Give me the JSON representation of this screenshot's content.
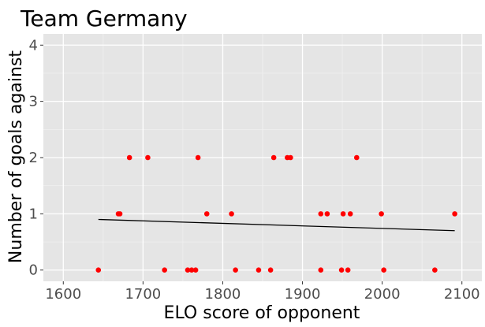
{
  "chart_data": {
    "type": "scatter",
    "title": "Team Germany",
    "xlabel": "ELO score of opponent",
    "ylabel": "Number of goals against",
    "xlim": [
      1575,
      2125
    ],
    "ylim": [
      -0.2,
      4.2
    ],
    "x_ticks": [
      1600,
      1700,
      1800,
      1900,
      2000,
      2100
    ],
    "y_ticks": [
      0,
      1,
      2,
      3,
      4
    ],
    "grid": true,
    "colors": {
      "panel": "#e5e5e5",
      "grid_major": "#ffffff",
      "points": "#ff0000",
      "line": "#000000"
    },
    "points": [
      {
        "x": 1644,
        "y": 0
      },
      {
        "x": 1669,
        "y": 1
      },
      {
        "x": 1671,
        "y": 1
      },
      {
        "x": 1683,
        "y": 2
      },
      {
        "x": 1706,
        "y": 2
      },
      {
        "x": 1727,
        "y": 0
      },
      {
        "x": 1756,
        "y": 0
      },
      {
        "x": 1761,
        "y": 0
      },
      {
        "x": 1766,
        "y": 0
      },
      {
        "x": 1769,
        "y": 2
      },
      {
        "x": 1780,
        "y": 1
      },
      {
        "x": 1811,
        "y": 1
      },
      {
        "x": 1816,
        "y": 0
      },
      {
        "x": 1845,
        "y": 0
      },
      {
        "x": 1860,
        "y": 0
      },
      {
        "x": 1864,
        "y": 2
      },
      {
        "x": 1881,
        "y": 2
      },
      {
        "x": 1885,
        "y": 2
      },
      {
        "x": 1923,
        "y": 0
      },
      {
        "x": 1923,
        "y": 1
      },
      {
        "x": 1931,
        "y": 1
      },
      {
        "x": 1949,
        "y": 0
      },
      {
        "x": 1951,
        "y": 1
      },
      {
        "x": 1957,
        "y": 0
      },
      {
        "x": 1960,
        "y": 1
      },
      {
        "x": 1968,
        "y": 2
      },
      {
        "x": 1999,
        "y": 1
      },
      {
        "x": 2002,
        "y": 0
      },
      {
        "x": 2066,
        "y": 0
      },
      {
        "x": 2091,
        "y": 1
      }
    ],
    "trend_line": {
      "x": [
        1644,
        2091
      ],
      "y": [
        0.9,
        0.7
      ]
    }
  }
}
